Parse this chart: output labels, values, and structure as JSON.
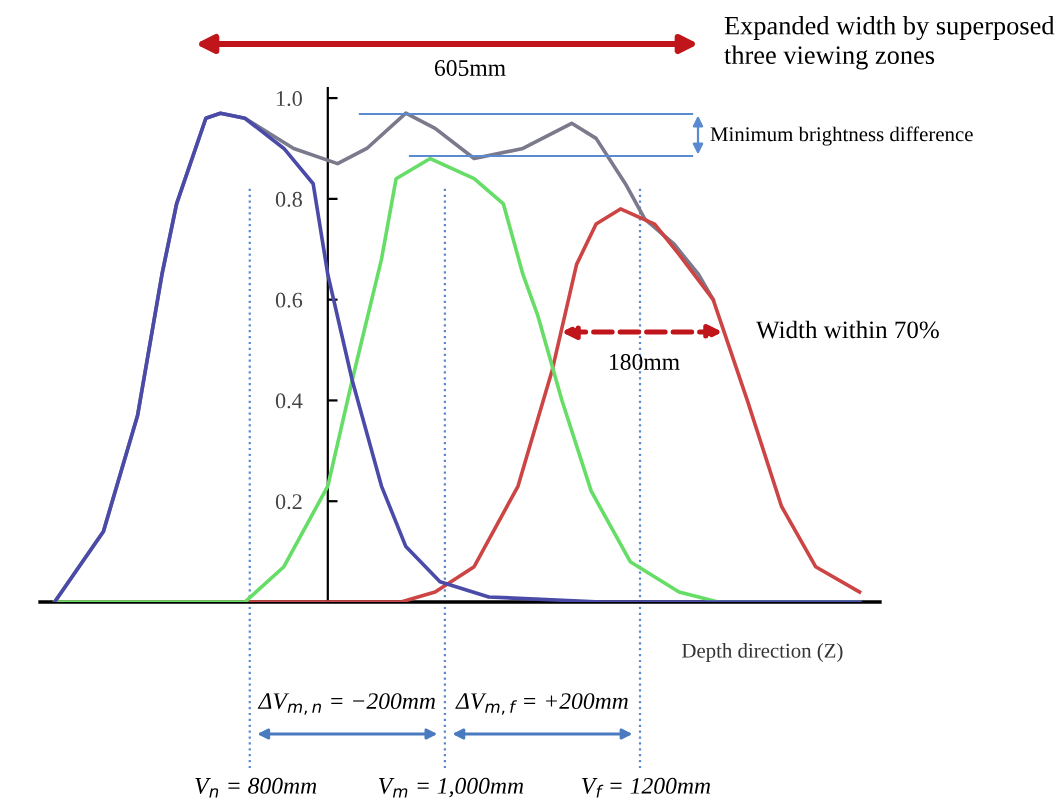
{
  "chart_data": {
    "type": "line",
    "xlabel": "Depth direction (Z)",
    "xlim": [
      585,
      1446
    ],
    "ylim": [
      0,
      1.02
    ],
    "yticks": [
      {
        "value": 0.2,
        "label": "0.2"
      },
      {
        "value": 0.4,
        "label": "0.4"
      },
      {
        "value": 0.6,
        "label": "0.6"
      },
      {
        "value": 0.8,
        "label": "0.8"
      },
      {
        "value": 1.0,
        "label": "1.0"
      }
    ],
    "tick_labels": "y",
    "grid": false,
    "legend": false,
    "marker": "none",
    "line_style": "solid",
    "series": [
      {
        "color": "#4a4aa8",
        "x": [
          600,
          650,
          685,
          710,
          725,
          755,
          770,
          795,
          835,
          865,
          880,
          905,
          935,
          960,
          995,
          1045,
          1160,
          1425
        ],
        "values": [
          0,
          0.14,
          0.37,
          0.65,
          0.79,
          0.96,
          0.97,
          0.96,
          0.9,
          0.83,
          0.65,
          0.44,
          0.23,
          0.11,
          0.04,
          0.01,
          0,
          0
        ]
      },
      {
        "color": "#66dd66",
        "x": [
          600,
          795,
          835,
          880,
          905,
          935,
          950,
          985,
          1030,
          1060,
          1080,
          1095,
          1120,
          1150,
          1190,
          1240,
          1280,
          1425
        ],
        "values": [
          0,
          0,
          0.07,
          0.23,
          0.44,
          0.68,
          0.84,
          0.88,
          0.84,
          0.79,
          0.65,
          0.57,
          0.4,
          0.22,
          0.08,
          0.02,
          0,
          0
        ]
      },
      {
        "color": "#cc4444",
        "x": [
          600,
          955,
          990,
          1030,
          1075,
          1110,
          1135,
          1155,
          1180,
          1215,
          1240,
          1275,
          1310,
          1345,
          1380,
          1425
        ],
        "values": [
          0,
          0,
          0.02,
          0.07,
          0.23,
          0.46,
          0.67,
          0.75,
          0.78,
          0.75,
          0.69,
          0.6,
          0.4,
          0.19,
          0.07,
          0.02
        ]
      },
      {
        "color": "#7a7a8c",
        "x": [
          600,
          650,
          685,
          710,
          725,
          755,
          770,
          795,
          845,
          890,
          920,
          960,
          990,
          1030,
          1080,
          1130,
          1155,
          1185,
          1205,
          1235,
          1260,
          1275
        ],
        "values": [
          0,
          0.14,
          0.37,
          0.65,
          0.79,
          0.96,
          0.97,
          0.96,
          0.9,
          0.87,
          0.9,
          0.97,
          0.94,
          0.88,
          0.9,
          0.95,
          0.92,
          0.83,
          0.76,
          0.71,
          0.65,
          0.6
        ]
      }
    ],
    "ref_lines": [
      {
        "axis": "x",
        "value": 800,
        "label": "V$_{n}$ = 800mm",
        "color": "#5a8ad0",
        "line_style": "dotted"
      },
      {
        "axis": "x",
        "value": 1000,
        "label": "V$_{m}$ = 1,000mm",
        "color": "#5a8ad0",
        "line_style": "dotted"
      },
      {
        "axis": "x",
        "value": 1200,
        "label": "V$_{f}$ = 1200mm",
        "color": "#5a8ad0",
        "line_style": "dotted"
      }
    ],
    "annotations": [
      "Expanded width by superposed three viewing zones",
      "605mm",
      "Minimum brightness difference",
      "Width within 70%",
      "180mm",
      "ΔV$_{m,n}$ = −200mm",
      "ΔV$_{m,f}$ = +200mm"
    ]
  }
}
